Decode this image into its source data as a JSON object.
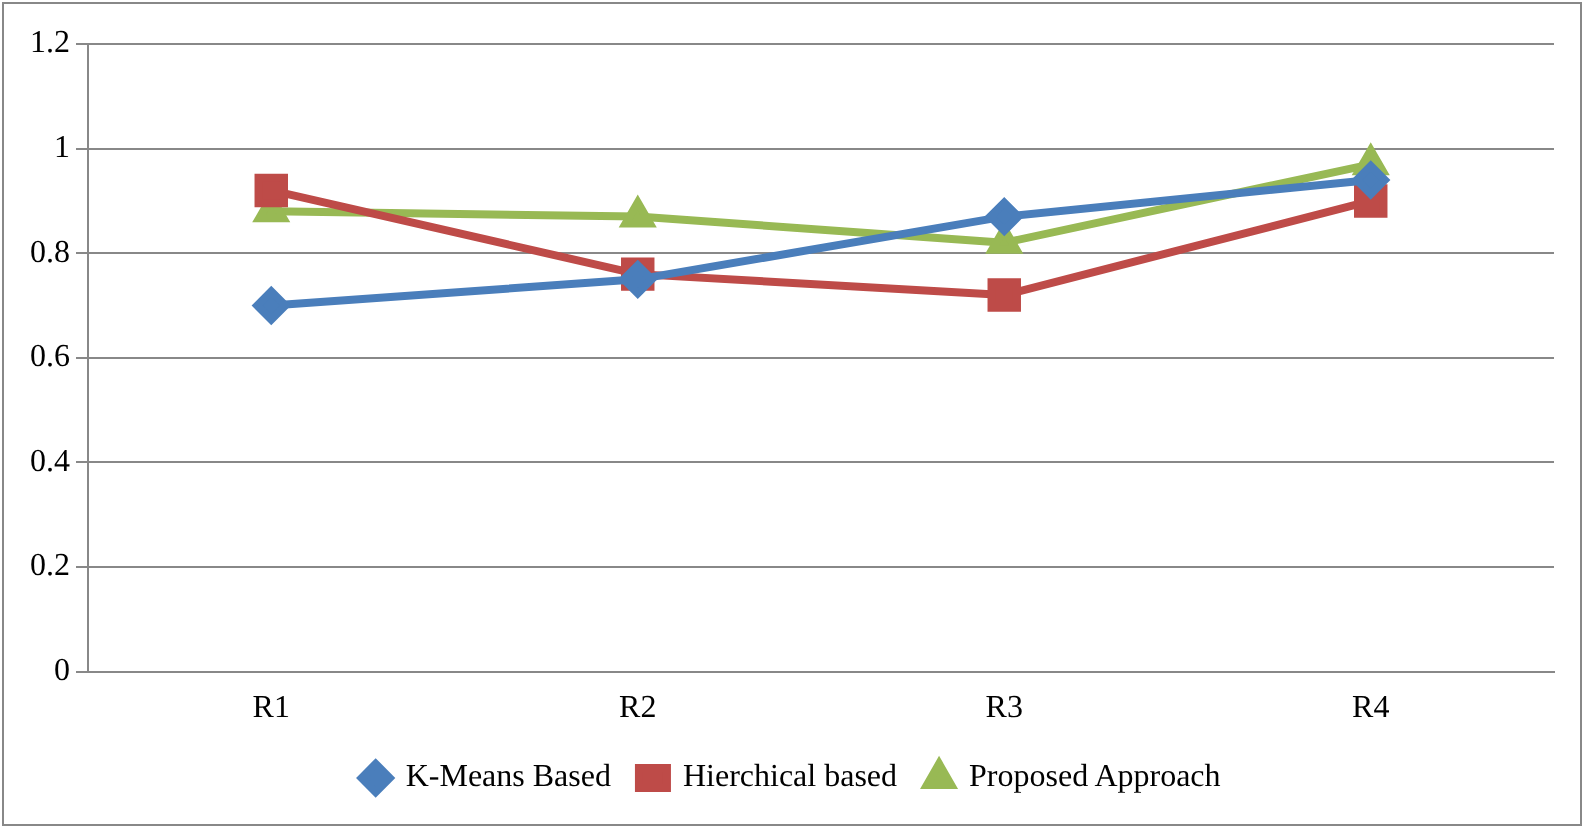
{
  "chart_data": {
    "type": "line",
    "categories": [
      "R1",
      "R2",
      "R3",
      "R4"
    ],
    "series": [
      {
        "name": "K-Means Based",
        "color": "#4a7ebb",
        "marker": "diamond",
        "values": [
          0.7,
          0.75,
          0.87,
          0.94
        ]
      },
      {
        "name": "Hierchical based",
        "color": "#be4b48",
        "marker": "square",
        "values": [
          0.92,
          0.76,
          0.72,
          0.9
        ]
      },
      {
        "name": "Proposed Approach",
        "color": "#98b954",
        "marker": "triangle",
        "values": [
          0.88,
          0.87,
          0.82,
          0.97
        ]
      }
    ],
    "ylim": [
      0,
      1.2
    ],
    "yticks": [
      0,
      0.2,
      0.4,
      0.6,
      0.8,
      1,
      1.2
    ],
    "grid": "y",
    "legend": "bottom",
    "line_style": "solid"
  }
}
